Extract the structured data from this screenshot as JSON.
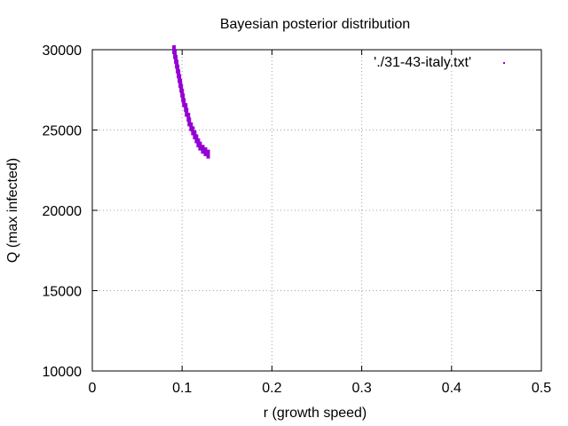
{
  "chart_data": {
    "type": "scatter",
    "title": "Bayesian posterior distribution",
    "xlabel": "r (growth speed)",
    "ylabel": "Q (max infected)",
    "xlim": [
      0,
      0.5
    ],
    "ylim": [
      10000,
      30000
    ],
    "x_ticks": [
      "0",
      "0.1",
      "0.2",
      "0.3",
      "0.4",
      "0.5"
    ],
    "y_ticks": [
      "10000",
      "15000",
      "20000",
      "25000",
      "30000"
    ],
    "grid": true,
    "legend": {
      "position": "top-right"
    },
    "series": [
      {
        "name": "'./31-43-italy.txt'",
        "color": "#9400d3",
        "points": [
          [
            0.091,
            30000
          ],
          [
            0.092,
            29700
          ],
          [
            0.093,
            29400
          ],
          [
            0.094,
            29100
          ],
          [
            0.095,
            28800
          ],
          [
            0.096,
            28500
          ],
          [
            0.097,
            28200
          ],
          [
            0.098,
            27900
          ],
          [
            0.099,
            27600
          ],
          [
            0.1,
            27300
          ],
          [
            0.101,
            27000
          ],
          [
            0.102,
            26700
          ],
          [
            0.104,
            26400
          ],
          [
            0.105,
            26100
          ],
          [
            0.107,
            25800
          ],
          [
            0.108,
            25500
          ],
          [
            0.11,
            25200
          ],
          [
            0.112,
            24950
          ],
          [
            0.114,
            24700
          ],
          [
            0.116,
            24450
          ],
          [
            0.118,
            24200
          ],
          [
            0.12,
            24000
          ],
          [
            0.123,
            23800
          ],
          [
            0.126,
            23650
          ],
          [
            0.129,
            23500
          ]
        ]
      }
    ]
  }
}
